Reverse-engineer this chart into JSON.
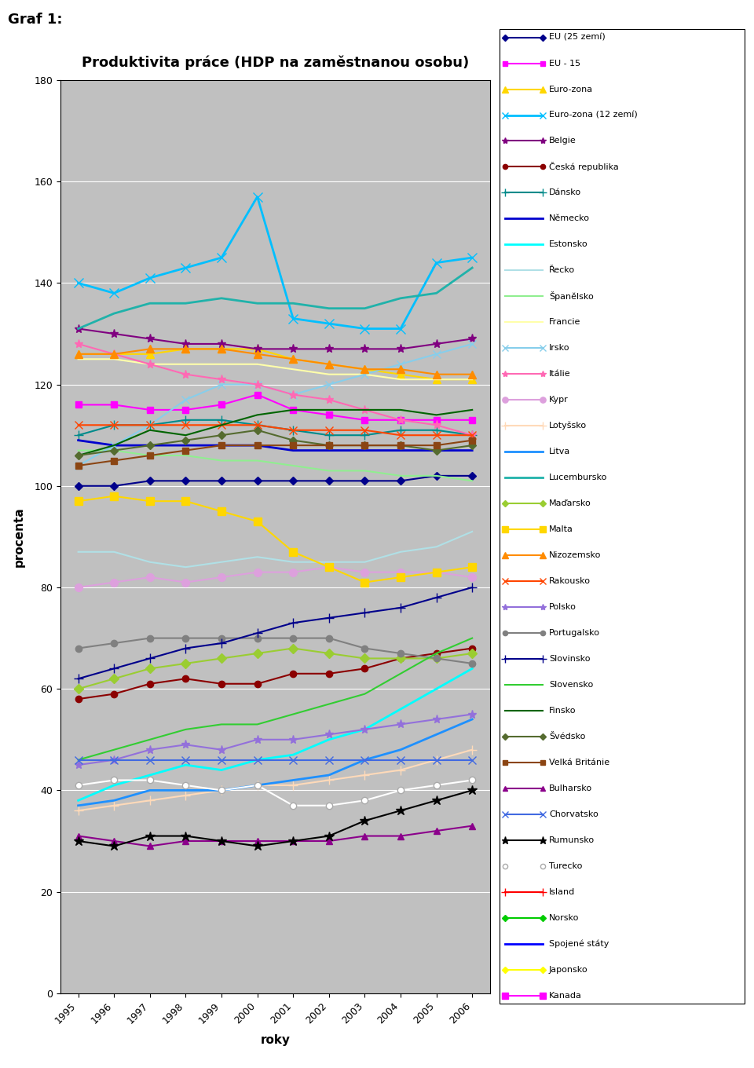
{
  "title": "Produktivita práce (HDP na zaměstnanou osobu)",
  "suptitle": "Graf 1:",
  "xlabel": "roky",
  "ylabel": "procenta",
  "years": [
    1995,
    1996,
    1997,
    1998,
    1999,
    2000,
    2001,
    2002,
    2003,
    2004,
    2005,
    2006
  ],
  "ylim": [
    0,
    180
  ],
  "yticks": [
    0,
    20,
    40,
    60,
    80,
    100,
    120,
    140,
    160,
    180
  ],
  "series": [
    {
      "name": "EU (25 zemí)",
      "color": "#00008B",
      "marker": "D",
      "markersize": 5,
      "linewidth": 1.5,
      "data": [
        100,
        100,
        101,
        101,
        101,
        101,
        101,
        101,
        101,
        101,
        102,
        102
      ]
    },
    {
      "name": "EU - 15",
      "color": "#FF00FF",
      "marker": "s",
      "markersize": 6,
      "linewidth": 1.5,
      "data": [
        116,
        116,
        115,
        115,
        116,
        118,
        115,
        114,
        113,
        113,
        113,
        113
      ]
    },
    {
      "name": "Euro-zona",
      "color": "#FFD700",
      "marker": "^",
      "markersize": 7,
      "linewidth": 1.5,
      "data": [
        126,
        126,
        126,
        127,
        127,
        127,
        125,
        124,
        123,
        122,
        121,
        121
      ]
    },
    {
      "name": "Euro-zona (12 zemí)",
      "color": "#00BFFF",
      "marker": "x",
      "markersize": 8,
      "linewidth": 2.0,
      "data": [
        140,
        138,
        141,
        143,
        145,
        157,
        133,
        132,
        131,
        131,
        144,
        145
      ]
    },
    {
      "name": "Belgie",
      "color": "#800080",
      "marker": "*",
      "markersize": 8,
      "linewidth": 1.5,
      "data": [
        131,
        130,
        129,
        128,
        128,
        127,
        127,
        127,
        127,
        127,
        128,
        129
      ]
    },
    {
      "name": "Česká republika",
      "color": "#8B0000",
      "marker": "o",
      "markersize": 6,
      "linewidth": 1.5,
      "data": [
        58,
        59,
        61,
        62,
        61,
        61,
        63,
        63,
        64,
        66,
        67,
        68
      ]
    },
    {
      "name": "Dánsko",
      "color": "#008B8B",
      "marker": "+",
      "markersize": 9,
      "linewidth": 1.5,
      "data": [
        110,
        112,
        112,
        113,
        113,
        112,
        111,
        110,
        110,
        111,
        111,
        110
      ]
    },
    {
      "name": "Německo",
      "color": "#0000CD",
      "marker": "None",
      "markersize": 5,
      "linewidth": 2.0,
      "data": [
        109,
        108,
        108,
        108,
        108,
        108,
        107,
        107,
        107,
        107,
        107,
        107
      ]
    },
    {
      "name": "Estonsko",
      "color": "#00FFFF",
      "marker": "None",
      "markersize": 5,
      "linewidth": 2.0,
      "data": [
        38,
        41,
        43,
        45,
        44,
        46,
        47,
        50,
        52,
        56,
        60,
        64
      ]
    },
    {
      "name": "Řecko",
      "color": "#B0E0E6",
      "marker": "None",
      "markersize": 5,
      "linewidth": 1.5,
      "data": [
        87,
        87,
        85,
        84,
        85,
        86,
        85,
        85,
        85,
        87,
        88,
        91
      ]
    },
    {
      "name": "Španělsko",
      "color": "#90EE90",
      "marker": "None",
      "markersize": 5,
      "linewidth": 1.5,
      "data": [
        107,
        107,
        106,
        106,
        105,
        105,
        104,
        103,
        103,
        102,
        102,
        101
      ]
    },
    {
      "name": "Francie",
      "color": "#FFFFAA",
      "marker": "None",
      "markersize": 5,
      "linewidth": 1.5,
      "data": [
        125,
        125,
        124,
        124,
        124,
        124,
        123,
        122,
        122,
        121,
        121,
        121
      ]
    },
    {
      "name": "Irsko",
      "color": "#87CEEB",
      "marker": "x",
      "markersize": 7,
      "linewidth": 1.5,
      "data": [
        104,
        108,
        112,
        117,
        120,
        120,
        118,
        120,
        122,
        124,
        126,
        128
      ]
    },
    {
      "name": "Itálie",
      "color": "#FF69B4",
      "marker": "*",
      "markersize": 8,
      "linewidth": 1.5,
      "data": [
        128,
        126,
        124,
        122,
        121,
        120,
        118,
        117,
        115,
        113,
        112,
        110
      ]
    },
    {
      "name": "Kypr",
      "color": "#DDA0DD",
      "marker": "o",
      "markersize": 7,
      "linewidth": 1.5,
      "data": [
        80,
        81,
        82,
        81,
        82,
        83,
        83,
        84,
        83,
        83,
        83,
        82
      ]
    },
    {
      "name": "Lotyšsko",
      "color": "#FFDAB9",
      "marker": "+",
      "markersize": 9,
      "linewidth": 1.5,
      "data": [
        36,
        37,
        38,
        39,
        40,
        41,
        41,
        42,
        43,
        44,
        46,
        48
      ]
    },
    {
      "name": "Litva",
      "color": "#1E90FF",
      "marker": "None",
      "markersize": 5,
      "linewidth": 2.0,
      "data": [
        37,
        38,
        40,
        40,
        40,
        41,
        42,
        43,
        46,
        48,
        51,
        54
      ]
    },
    {
      "name": "Lucembursko",
      "color": "#20B2AA",
      "marker": "None",
      "markersize": 5,
      "linewidth": 2.0,
      "data": [
        131,
        134,
        136,
        136,
        137,
        136,
        136,
        135,
        135,
        137,
        138,
        143
      ]
    },
    {
      "name": "Maďarsko",
      "color": "#9ACD32",
      "marker": "D",
      "markersize": 6,
      "linewidth": 1.5,
      "data": [
        60,
        62,
        64,
        65,
        66,
        67,
        68,
        67,
        66,
        66,
        66,
        67
      ]
    },
    {
      "name": "Malta",
      "color": "#FFD700",
      "marker": "s",
      "markersize": 7,
      "linewidth": 1.5,
      "data": [
        97,
        98,
        97,
        97,
        95,
        93,
        87,
        84,
        81,
        82,
        83,
        84
      ]
    },
    {
      "name": "Nizozemsko",
      "color": "#FF8C00",
      "marker": "^",
      "markersize": 7,
      "linewidth": 1.5,
      "data": [
        126,
        126,
        127,
        127,
        127,
        126,
        125,
        124,
        123,
        123,
        122,
        122
      ]
    },
    {
      "name": "Rakousko",
      "color": "#FF4500",
      "marker": "x",
      "markersize": 7,
      "linewidth": 1.5,
      "data": [
        112,
        112,
        112,
        112,
        112,
        112,
        111,
        111,
        111,
        110,
        110,
        110
      ]
    },
    {
      "name": "Polsko",
      "color": "#9370DB",
      "marker": "*",
      "markersize": 8,
      "linewidth": 1.5,
      "data": [
        45,
        46,
        48,
        49,
        48,
        50,
        50,
        51,
        52,
        53,
        54,
        55
      ]
    },
    {
      "name": "Portugalsko",
      "color": "#808080",
      "marker": "o",
      "markersize": 6,
      "linewidth": 1.5,
      "data": [
        68,
        69,
        70,
        70,
        70,
        70,
        70,
        70,
        68,
        67,
        66,
        65
      ]
    },
    {
      "name": "Slovinsko",
      "color": "#00008B",
      "marker": "+",
      "markersize": 9,
      "linewidth": 1.5,
      "data": [
        62,
        64,
        66,
        68,
        69,
        71,
        73,
        74,
        75,
        76,
        78,
        80
      ]
    },
    {
      "name": "Slovensko",
      "color": "#32CD32",
      "marker": "None",
      "markersize": 5,
      "linewidth": 1.5,
      "data": [
        46,
        48,
        50,
        52,
        53,
        53,
        55,
        57,
        59,
        63,
        67,
        70
      ]
    },
    {
      "name": "Finsko",
      "color": "#006400",
      "marker": "None",
      "markersize": 5,
      "linewidth": 1.5,
      "data": [
        106,
        108,
        111,
        110,
        112,
        114,
        115,
        115,
        115,
        115,
        114,
        115
      ]
    },
    {
      "name": "Švédsko",
      "color": "#556B2F",
      "marker": "D",
      "markersize": 5,
      "linewidth": 1.5,
      "data": [
        106,
        107,
        108,
        109,
        110,
        111,
        109,
        108,
        108,
        108,
        107,
        108
      ]
    },
    {
      "name": "Velká Británie",
      "color": "#8B4513",
      "marker": "s",
      "markersize": 6,
      "linewidth": 1.5,
      "data": [
        104,
        105,
        106,
        107,
        108,
        108,
        108,
        108,
        108,
        108,
        108,
        109
      ]
    },
    {
      "name": "Bulharsko",
      "color": "#8B008B",
      "marker": "^",
      "markersize": 6,
      "linewidth": 1.5,
      "data": [
        31,
        30,
        29,
        30,
        30,
        30,
        30,
        30,
        31,
        31,
        32,
        33
      ]
    },
    {
      "name": "Chorvatsko",
      "color": "#4169E1",
      "marker": "x",
      "markersize": 7,
      "linewidth": 1.5,
      "data": [
        46,
        46,
        46,
        46,
        46,
        46,
        46,
        46,
        46,
        46,
        46,
        46
      ]
    },
    {
      "name": "Rumunsko",
      "color": "#000000",
      "marker": "*",
      "markersize": 9,
      "linewidth": 1.5,
      "data": [
        30,
        29,
        31,
        31,
        30,
        29,
        30,
        31,
        34,
        36,
        38,
        40
      ]
    },
    {
      "name": "Turecko",
      "color": "#FFFFFF",
      "marker": "o",
      "markersize": 6,
      "linewidth": 1.5,
      "edge_color": "#AAAAAA",
      "data": [
        41,
        42,
        42,
        41,
        40,
        41,
        37,
        37,
        38,
        40,
        41,
        42
      ]
    },
    {
      "name": "Island",
      "color": "#FF0000",
      "marker": "+",
      "markersize": 9,
      "linewidth": 1.5,
      "data": [
        null,
        null,
        null,
        null,
        null,
        null,
        null,
        null,
        null,
        null,
        null,
        null
      ]
    },
    {
      "name": "Norsko",
      "color": "#00CC00",
      "marker": "D",
      "markersize": 5,
      "linewidth": 1.5,
      "data": [
        null,
        null,
        null,
        null,
        null,
        null,
        null,
        null,
        null,
        null,
        null,
        null
      ]
    },
    {
      "name": "Spojené státy",
      "color": "#0000FF",
      "marker": "None",
      "markersize": 5,
      "linewidth": 2.0,
      "data": [
        null,
        null,
        null,
        null,
        null,
        null,
        null,
        null,
        null,
        null,
        null,
        null
      ]
    },
    {
      "name": "Japonsko",
      "color": "#FFFF00",
      "marker": "D",
      "markersize": 6,
      "linewidth": 1.5,
      "data": [
        null,
        null,
        null,
        null,
        null,
        null,
        null,
        null,
        null,
        null,
        null,
        null
      ]
    },
    {
      "name": "Kanada",
      "color": "#FF00FF",
      "marker": "s",
      "markersize": 7,
      "linewidth": 1.5,
      "data": [
        null,
        null,
        null,
        null,
        null,
        null,
        null,
        null,
        null,
        null,
        null,
        null
      ]
    }
  ]
}
